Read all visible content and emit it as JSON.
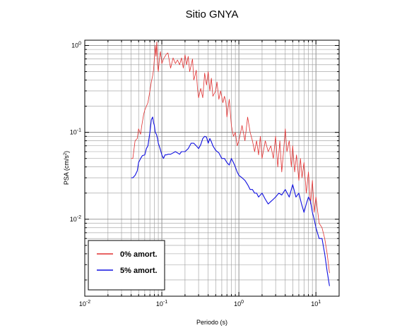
{
  "chart_data": {
    "type": "line",
    "title": "Sitio GNYA",
    "xlabel": "Periodo (s)",
    "ylabel_base": "PSA (cm/s",
    "ylabel_sup": "2",
    "ylabel_end": ")",
    "xscale": "log",
    "yscale": "log",
    "xlim": [
      0.01,
      20
    ],
    "ylim": [
      0.0013,
      1.15
    ],
    "grid": true,
    "legend_position": "bottom-left",
    "x_ticks": [
      {
        "value": 0.01,
        "base": "10",
        "exp": "-2"
      },
      {
        "value": 0.1,
        "base": "10",
        "exp": "-1"
      },
      {
        "value": 1,
        "base": "10",
        "exp": "0"
      },
      {
        "value": 10,
        "base": "10",
        "exp": "1"
      }
    ],
    "y_ticks": [
      {
        "value": 0.01,
        "base": "10",
        "exp": "-2"
      },
      {
        "value": 0.1,
        "base": "10",
        "exp": "-1"
      },
      {
        "value": 1,
        "base": "10",
        "exp": "0"
      }
    ],
    "series": [
      {
        "name": "0% amort.",
        "color": "#e03030",
        "x": [
          0.04,
          0.042,
          0.045,
          0.048,
          0.05,
          0.053,
          0.055,
          0.058,
          0.06,
          0.063,
          0.066,
          0.07,
          0.073,
          0.076,
          0.078,
          0.08,
          0.082,
          0.084,
          0.086,
          0.088,
          0.09,
          0.093,
          0.096,
          0.1,
          0.105,
          0.11,
          0.115,
          0.12,
          0.13,
          0.14,
          0.15,
          0.16,
          0.17,
          0.18,
          0.19,
          0.2,
          0.21,
          0.22,
          0.23,
          0.25,
          0.26,
          0.27,
          0.28,
          0.29,
          0.3,
          0.32,
          0.34,
          0.36,
          0.38,
          0.4,
          0.42,
          0.44,
          0.46,
          0.5,
          0.52,
          0.55,
          0.58,
          0.62,
          0.65,
          0.68,
          0.7,
          0.75,
          0.8,
          0.85,
          0.9,
          0.95,
          1.0,
          1.1,
          1.2,
          1.3,
          1.4,
          1.5,
          1.6,
          1.7,
          1.8,
          1.9,
          2.0,
          2.2,
          2.4,
          2.6,
          2.8,
          3.0,
          3.2,
          3.4,
          3.6,
          3.8,
          4.0,
          4.2,
          4.5,
          4.8,
          5.0,
          5.3,
          5.6,
          6.0,
          6.3,
          6.6,
          7.0,
          7.5,
          8.0,
          8.5,
          9.0,
          9.5,
          10,
          11,
          12,
          13,
          14,
          15
        ],
        "y": [
          0.05,
          0.05,
          0.08,
          0.085,
          0.11,
          0.095,
          0.12,
          0.16,
          0.18,
          0.2,
          0.22,
          0.3,
          0.38,
          0.45,
          0.52,
          0.7,
          1.0,
          0.75,
          1.1,
          0.6,
          0.5,
          0.7,
          0.85,
          0.62,
          0.7,
          0.75,
          0.8,
          0.82,
          0.55,
          0.72,
          0.62,
          0.68,
          0.6,
          0.72,
          0.55,
          0.78,
          0.6,
          0.75,
          0.5,
          0.7,
          0.4,
          0.45,
          0.52,
          0.32,
          0.25,
          0.32,
          0.25,
          0.48,
          0.35,
          0.5,
          0.3,
          0.42,
          0.26,
          0.3,
          0.38,
          0.24,
          0.3,
          0.22,
          0.26,
          0.22,
          0.15,
          0.24,
          0.12,
          0.09,
          0.1,
          0.07,
          0.08,
          0.12,
          0.08,
          0.15,
          0.1,
          0.08,
          0.06,
          0.08,
          0.055,
          0.09,
          0.05,
          0.08,
          0.06,
          0.07,
          0.05,
          0.09,
          0.04,
          0.08,
          0.035,
          0.06,
          0.11,
          0.06,
          0.08,
          0.04,
          0.07,
          0.035,
          0.055,
          0.028,
          0.05,
          0.03,
          0.045,
          0.02,
          0.035,
          0.015,
          0.028,
          0.012,
          0.018,
          0.009,
          0.008,
          0.006,
          0.004,
          0.0024
        ]
      },
      {
        "name": "5% amort.",
        "color": "#1010e0",
        "x": [
          0.04,
          0.042,
          0.045,
          0.048,
          0.05,
          0.053,
          0.056,
          0.06,
          0.063,
          0.066,
          0.07,
          0.073,
          0.076,
          0.078,
          0.08,
          0.082,
          0.085,
          0.088,
          0.09,
          0.095,
          0.1,
          0.105,
          0.11,
          0.115,
          0.12,
          0.13,
          0.14,
          0.15,
          0.16,
          0.17,
          0.18,
          0.2,
          0.22,
          0.24,
          0.26,
          0.28,
          0.3,
          0.32,
          0.34,
          0.36,
          0.38,
          0.4,
          0.42,
          0.44,
          0.46,
          0.5,
          0.55,
          0.6,
          0.65,
          0.7,
          0.75,
          0.8,
          0.85,
          0.9,
          0.95,
          1.0,
          1.1,
          1.2,
          1.3,
          1.4,
          1.5,
          1.6,
          1.7,
          1.8,
          2.0,
          2.2,
          2.4,
          2.6,
          2.8,
          3.0,
          3.3,
          3.6,
          4.0,
          4.5,
          5.0,
          5.5,
          6.0,
          6.5,
          7.0,
          7.5,
          8.0,
          8.5,
          9.0,
          9.5,
          10,
          11,
          12,
          13,
          14,
          15
        ],
        "y": [
          0.03,
          0.03,
          0.032,
          0.036,
          0.045,
          0.05,
          0.054,
          0.055,
          0.065,
          0.07,
          0.1,
          0.14,
          0.15,
          0.13,
          0.12,
          0.1,
          0.095,
          0.085,
          0.075,
          0.065,
          0.055,
          0.05,
          0.055,
          0.055,
          0.056,
          0.056,
          0.058,
          0.06,
          0.058,
          0.056,
          0.06,
          0.06,
          0.065,
          0.075,
          0.075,
          0.07,
          0.065,
          0.072,
          0.085,
          0.09,
          0.088,
          0.075,
          0.085,
          0.078,
          0.07,
          0.062,
          0.058,
          0.05,
          0.05,
          0.045,
          0.042,
          0.05,
          0.045,
          0.04,
          0.035,
          0.032,
          0.03,
          0.028,
          0.025,
          0.022,
          0.022,
          0.02,
          0.02,
          0.018,
          0.02,
          0.017,
          0.015,
          0.016,
          0.017,
          0.018,
          0.02,
          0.019,
          0.022,
          0.018,
          0.025,
          0.018,
          0.02,
          0.015,
          0.012,
          0.015,
          0.018,
          0.016,
          0.012,
          0.01,
          0.008,
          0.006,
          0.006,
          0.004,
          0.0025,
          0.0017
        ]
      }
    ]
  }
}
